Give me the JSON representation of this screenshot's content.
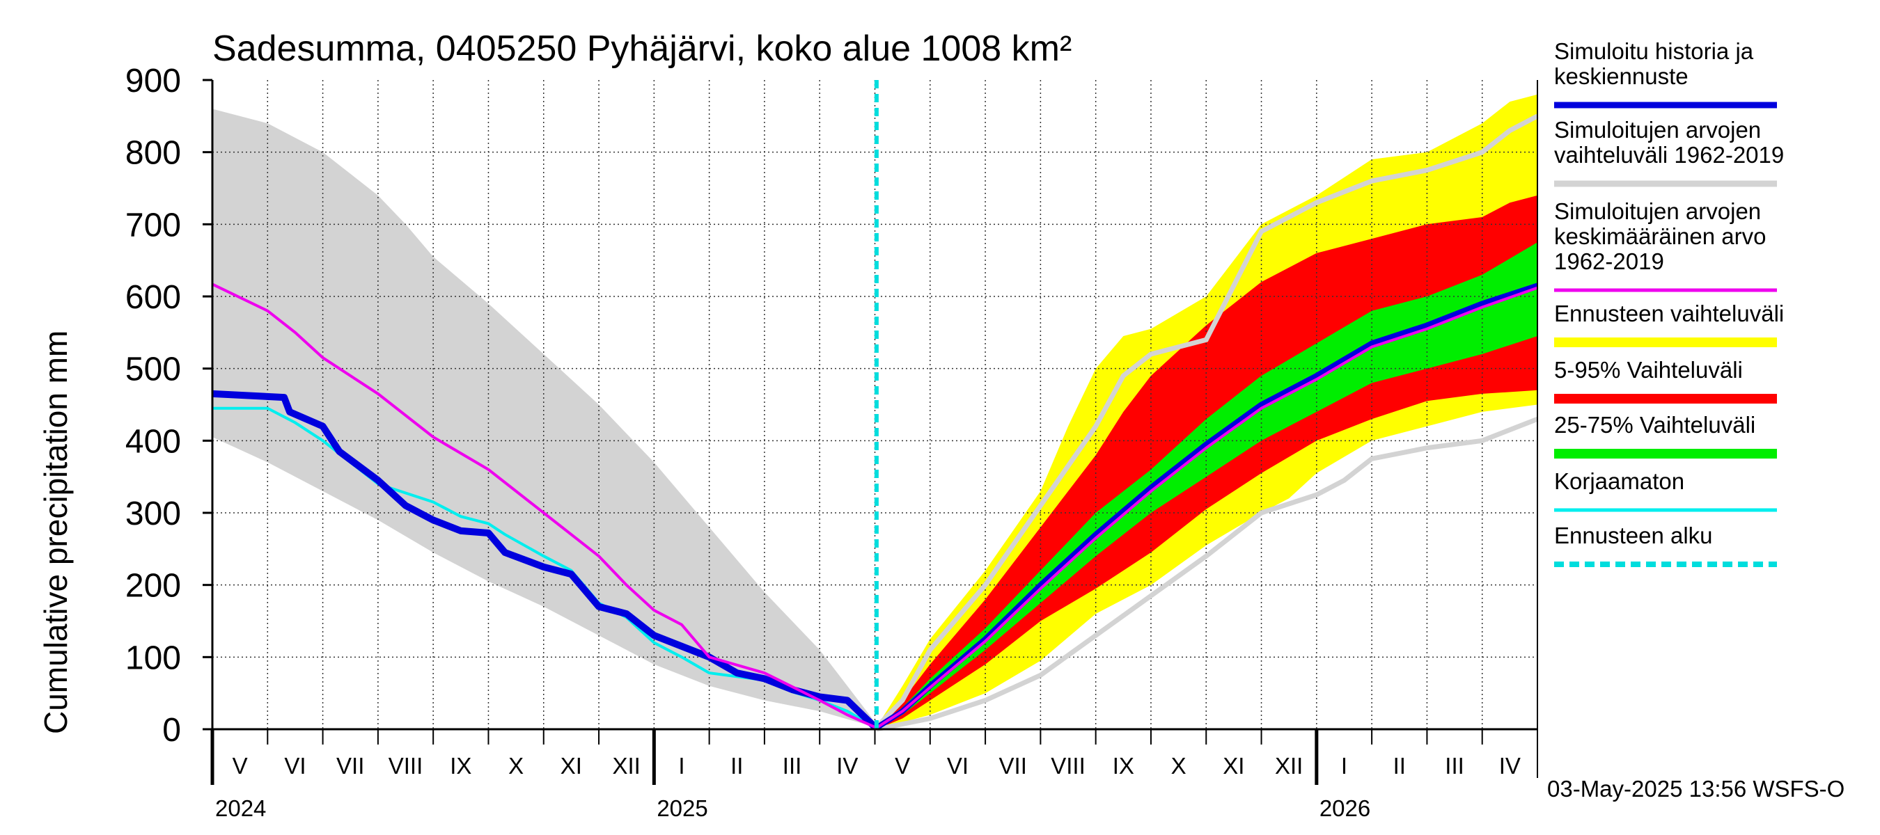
{
  "chart_data": {
    "type": "area",
    "title": "Sadesumma, 0405250 Pyhäjärvi, koko alue 1008 km²",
    "ylabel": "Cumulative precipitation   mm",
    "ylim": [
      0,
      900
    ],
    "yticks": [
      0,
      100,
      200,
      300,
      400,
      500,
      600,
      700,
      800,
      900
    ],
    "x_unit": "months since 2024-05-01",
    "xlim": [
      0,
      24
    ],
    "month_labels": [
      "V",
      "VI",
      "VII",
      "VIII",
      "IX",
      "X",
      "XI",
      "XII",
      "I",
      "II",
      "III",
      "IV",
      "V",
      "VI",
      "VII",
      "VIII",
      "IX",
      "X",
      "XI",
      "XII",
      "I",
      "II",
      "III",
      "IV"
    ],
    "year_labels": [
      {
        "label": "2024",
        "x": 0
      },
      {
        "label": "2025",
        "x": 8
      },
      {
        "label": "2026",
        "x": 20
      }
    ],
    "forecast_start_x": 12.03,
    "footer": "03-May-2025 13:56 WSFS-O",
    "colors": {
      "history": "#0000dd",
      "hist_range": "#d3d3d3",
      "mean": "#ee00ee",
      "forecast_range": "#ffff00",
      "p5_95": "#ff0000",
      "p25_75": "#00ee00",
      "uncorrected": "#00eeee",
      "forecast_start": "#00dddd"
    },
    "legend": [
      {
        "key": "history",
        "label": "Simuloitu historia ja\nkeskiennuste",
        "style": "line-thick"
      },
      {
        "key": "hist_range",
        "label": "Simuloitujen arvojen\nvaihteluväli 1962-2019",
        "style": "line-thick"
      },
      {
        "key": "mean",
        "label": "Simuloitujen arvojen\nkeskimääräinen arvo\n   1962-2019",
        "style": "line"
      },
      {
        "key": "forecast_range",
        "label": "Ennusteen vaihteluväli",
        "style": "band"
      },
      {
        "key": "p5_95",
        "label": "5-95% Vaihteluväli",
        "style": "band"
      },
      {
        "key": "p25_75",
        "label": "25-75% Vaihteluväli",
        "style": "band"
      },
      {
        "key": "uncorrected",
        "label": "Korjaamaton",
        "style": "line"
      },
      {
        "key": "forecast_start",
        "label": "Ennusteen alku",
        "style": "dashed"
      }
    ],
    "series": [
      {
        "name": "hist_range_upper",
        "points": [
          [
            0,
            860
          ],
          [
            1,
            840
          ],
          [
            2,
            800
          ],
          [
            3,
            740
          ],
          [
            3.5,
            700
          ],
          [
            4,
            655
          ],
          [
            5,
            590
          ],
          [
            6,
            520
          ],
          [
            7,
            450
          ],
          [
            8,
            370
          ],
          [
            9,
            280
          ],
          [
            10,
            190
          ],
          [
            11,
            110
          ],
          [
            11.5,
            60
          ],
          [
            12,
            10
          ]
        ]
      },
      {
        "name": "hist_range_lower",
        "points": [
          [
            0,
            405
          ],
          [
            1,
            370
          ],
          [
            2,
            330
          ],
          [
            3,
            290
          ],
          [
            4,
            245
          ],
          [
            5,
            205
          ],
          [
            6,
            170
          ],
          [
            7,
            130
          ],
          [
            8,
            90
          ],
          [
            9,
            60
          ],
          [
            10,
            40
          ],
          [
            11,
            25
          ],
          [
            12,
            3
          ]
        ]
      },
      {
        "name": "simulated_mean",
        "points": [
          [
            0,
            617
          ],
          [
            1,
            580
          ],
          [
            1.5,
            550
          ],
          [
            2,
            515
          ],
          [
            3,
            465
          ],
          [
            4,
            405
          ],
          [
            5,
            360
          ],
          [
            6,
            300
          ],
          [
            7,
            240
          ],
          [
            7.5,
            200
          ],
          [
            8,
            165
          ],
          [
            8.5,
            145
          ],
          [
            9,
            100
          ],
          [
            10,
            78
          ],
          [
            11,
            40
          ],
          [
            11.5,
            20
          ],
          [
            12,
            3
          ]
        ]
      },
      {
        "name": "history",
        "points": [
          [
            0,
            465
          ],
          [
            1.3,
            460
          ],
          [
            1.4,
            440
          ],
          [
            2,
            420
          ],
          [
            2.3,
            385
          ],
          [
            3,
            345
          ],
          [
            3.5,
            310
          ],
          [
            4,
            290
          ],
          [
            4.5,
            275
          ],
          [
            5,
            272
          ],
          [
            5.3,
            245
          ],
          [
            6,
            225
          ],
          [
            6.5,
            215
          ],
          [
            7,
            170
          ],
          [
            7.5,
            160
          ],
          [
            8,
            130
          ],
          [
            9,
            100
          ],
          [
            9.5,
            78
          ],
          [
            10,
            70
          ],
          [
            10.5,
            55
          ],
          [
            11,
            45
          ],
          [
            11.5,
            40
          ],
          [
            12,
            3
          ]
        ]
      },
      {
        "name": "uncorrected",
        "points": [
          [
            0,
            445
          ],
          [
            1,
            445
          ],
          [
            1.5,
            425
          ],
          [
            2,
            400
          ],
          [
            3,
            340
          ],
          [
            4,
            315
          ],
          [
            4.5,
            295
          ],
          [
            5,
            285
          ],
          [
            5.3,
            270
          ],
          [
            6,
            240
          ],
          [
            6.5,
            220
          ],
          [
            7,
            175
          ],
          [
            7.5,
            155
          ],
          [
            8,
            120
          ],
          [
            8.5,
            100
          ],
          [
            9,
            78
          ],
          [
            10,
            68
          ],
          [
            10.5,
            52
          ],
          [
            11,
            40
          ],
          [
            11.5,
            25
          ],
          [
            12,
            3
          ]
        ]
      },
      {
        "name": "forecast_max",
        "points": [
          [
            12.03,
            3
          ],
          [
            12.5,
            60
          ],
          [
            13,
            125
          ],
          [
            14,
            220
          ],
          [
            15,
            330
          ],
          [
            15.5,
            420
          ],
          [
            16,
            500
          ],
          [
            16.5,
            545
          ],
          [
            17,
            555
          ],
          [
            18,
            600
          ],
          [
            19,
            700
          ],
          [
            20,
            740
          ],
          [
            21,
            790
          ],
          [
            22,
            800
          ],
          [
            23,
            840
          ],
          [
            23.5,
            870
          ],
          [
            24,
            880
          ]
        ]
      },
      {
        "name": "forecast_min",
        "points": [
          [
            12.03,
            0
          ],
          [
            13,
            20
          ],
          [
            14,
            50
          ],
          [
            15,
            95
          ],
          [
            16,
            160
          ],
          [
            17,
            200
          ],
          [
            18,
            255
          ],
          [
            19,
            300
          ],
          [
            19.5,
            320
          ],
          [
            20,
            355
          ],
          [
            21,
            400
          ],
          [
            22,
            420
          ],
          [
            23,
            440
          ],
          [
            24,
            450
          ]
        ]
      },
      {
        "name": "p95",
        "points": [
          [
            12.03,
            3
          ],
          [
            12.5,
            40
          ],
          [
            13,
            90
          ],
          [
            14,
            180
          ],
          [
            15,
            280
          ],
          [
            16,
            380
          ],
          [
            16.5,
            440
          ],
          [
            17,
            490
          ],
          [
            18,
            560
          ],
          [
            19,
            620
          ],
          [
            20,
            660
          ],
          [
            21,
            680
          ],
          [
            22,
            700
          ],
          [
            23,
            710
          ],
          [
            23.5,
            730
          ],
          [
            24,
            740
          ]
        ]
      },
      {
        "name": "p5",
        "points": [
          [
            12.03,
            0
          ],
          [
            12.5,
            15
          ],
          [
            13,
            40
          ],
          [
            14,
            90
          ],
          [
            15,
            150
          ],
          [
            16,
            195
          ],
          [
            17,
            245
          ],
          [
            18,
            305
          ],
          [
            19,
            355
          ],
          [
            20,
            400
          ],
          [
            21,
            430
          ],
          [
            22,
            455
          ],
          [
            23,
            465
          ],
          [
            24,
            470
          ]
        ]
      },
      {
        "name": "p75",
        "points": [
          [
            12.03,
            2
          ],
          [
            12.5,
            30
          ],
          [
            13,
            70
          ],
          [
            14,
            140
          ],
          [
            15,
            220
          ],
          [
            16,
            300
          ],
          [
            17,
            360
          ],
          [
            18,
            430
          ],
          [
            19,
            490
          ],
          [
            20,
            535
          ],
          [
            21,
            580
          ],
          [
            22,
            600
          ],
          [
            23,
            630
          ],
          [
            24,
            675
          ]
        ]
      },
      {
        "name": "p25",
        "points": [
          [
            12.03,
            1
          ],
          [
            12.5,
            20
          ],
          [
            13,
            50
          ],
          [
            14,
            110
          ],
          [
            15,
            175
          ],
          [
            16,
            240
          ],
          [
            17,
            300
          ],
          [
            18,
            350
          ],
          [
            19,
            400
          ],
          [
            20,
            440
          ],
          [
            21,
            480
          ],
          [
            22,
            500
          ],
          [
            23,
            520
          ],
          [
            24,
            545
          ]
        ]
      },
      {
        "name": "forecast_median",
        "points": [
          [
            12.03,
            2
          ],
          [
            12.5,
            25
          ],
          [
            13,
            60
          ],
          [
            14,
            125
          ],
          [
            15,
            200
          ],
          [
            16,
            270
          ],
          [
            17,
            335
          ],
          [
            18,
            395
          ],
          [
            19,
            450
          ],
          [
            20,
            490
          ],
          [
            21,
            535
          ],
          [
            22,
            560
          ],
          [
            23,
            590
          ],
          [
            24,
            615
          ]
        ]
      },
      {
        "name": "forecast_mean",
        "points": [
          [
            12.03,
            2
          ],
          [
            12.5,
            25
          ],
          [
            13,
            58
          ],
          [
            14,
            122
          ],
          [
            15,
            195
          ],
          [
            16,
            265
          ],
          [
            17,
            330
          ],
          [
            18,
            390
          ],
          [
            19,
            445
          ],
          [
            20,
            485
          ],
          [
            21,
            530
          ],
          [
            22,
            555
          ],
          [
            23,
            585
          ],
          [
            24,
            612
          ]
        ]
      },
      {
        "name": "hist_max_ext",
        "points": [
          [
            12.03,
            3
          ],
          [
            12.5,
            40
          ],
          [
            13,
            110
          ],
          [
            14,
            200
          ],
          [
            15,
            310
          ],
          [
            16,
            420
          ],
          [
            16.5,
            490
          ],
          [
            17,
            520
          ],
          [
            18,
            540
          ],
          [
            19,
            690
          ],
          [
            20,
            730
          ],
          [
            21,
            760
          ],
          [
            22,
            775
          ],
          [
            23,
            800
          ],
          [
            23.5,
            830
          ],
          [
            24,
            850
          ]
        ]
      },
      {
        "name": "hist_min_ext",
        "points": [
          [
            12.03,
            0
          ],
          [
            13,
            15
          ],
          [
            14,
            40
          ],
          [
            15,
            75
          ],
          [
            16,
            130
          ],
          [
            17,
            185
          ],
          [
            18,
            240
          ],
          [
            19,
            300
          ],
          [
            20,
            325
          ],
          [
            20.5,
            345
          ],
          [
            21,
            375
          ],
          [
            22,
            390
          ],
          [
            23,
            400
          ],
          [
            24,
            430
          ]
        ]
      }
    ]
  }
}
